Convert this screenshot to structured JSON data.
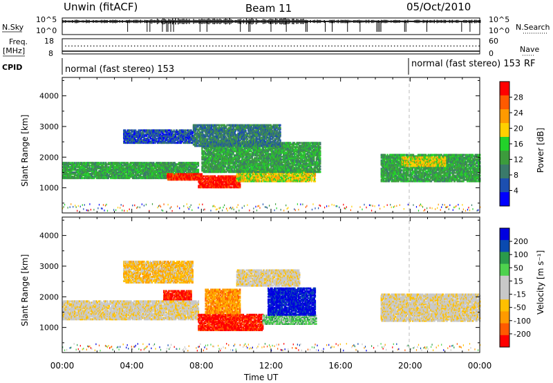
{
  "header": {
    "station": "Unwin (fitACF)",
    "beam": "Beam 11",
    "date": "05/Oct/2010"
  },
  "nsky_panel": {
    "left_label": "N.Sky",
    "right_label": "N.Search",
    "left_ticks": [
      "10^5",
      "10^0"
    ],
    "right_ticks": [
      "10^5",
      "10^0"
    ]
  },
  "freq_panel": {
    "left_label": "Freq.",
    "left_unit": "[MHz]",
    "right_label": "Nave",
    "left_ticks": [
      "18",
      "8"
    ],
    "right_ticks": [
      "60",
      "0"
    ]
  },
  "cpid_panel": {
    "label": "CPID",
    "segments": [
      {
        "text": "normal (fast stereo) 153",
        "start_hour": 0
      },
      {
        "text": "normal (fast stereo) 153",
        "start_hour": 19.9
      }
    ],
    "rf_label": "RF"
  },
  "x_axis": {
    "label": "Time UT",
    "ticks": [
      "00:00",
      "04:00",
      "08:00",
      "12:00",
      "16:00",
      "20:00",
      "00:00"
    ],
    "range_hours": [
      0,
      24
    ]
  },
  "chart_data": [
    {
      "type": "heatmap",
      "name": "power",
      "ylabel": "Slant Range [km]",
      "ylim": [
        180,
        4600
      ],
      "yticks": [
        1000,
        2000,
        3000,
        4000
      ],
      "colorbar": {
        "label": "Power [dB]",
        "ticks": [
          "28",
          "24",
          "20",
          "16",
          "12",
          "8",
          "4"
        ],
        "colors": [
          "#0000ff",
          "#1c4fb0",
          "#3a7a6a",
          "#3c9c3c",
          "#22d22a",
          "#ffd000",
          "#ff9a00",
          "#ff5a00",
          "#ff0000"
        ]
      },
      "echo_bands": [
        {
          "t0": 0.0,
          "t1": 7.8,
          "r0": 1350,
          "r1": 1850,
          "level": 3
        },
        {
          "t0": 6.0,
          "t1": 8.0,
          "r0": 1300,
          "r1": 1500,
          "level": 8
        },
        {
          "t0": 7.8,
          "t1": 10.2,
          "r0": 1050,
          "r1": 1450,
          "level": 8
        },
        {
          "t0": 10.0,
          "t1": 14.5,
          "r0": 1250,
          "r1": 1650,
          "level": 5
        },
        {
          "t0": 8.0,
          "t1": 14.8,
          "r0": 1550,
          "r1": 2500,
          "level": 3
        },
        {
          "t0": 3.5,
          "t1": 7.5,
          "r0": 2500,
          "r1": 2950,
          "level": 1
        },
        {
          "t0": 7.5,
          "t1": 12.5,
          "r0": 2400,
          "r1": 3100,
          "level": 2
        },
        {
          "t0": 18.3,
          "t1": 24.0,
          "r0": 1250,
          "r1": 2150,
          "level": 3
        },
        {
          "t0": 19.5,
          "t1": 22.0,
          "r0": 1750,
          "r1": 2050,
          "level": 5
        }
      ]
    },
    {
      "type": "heatmap",
      "name": "velocity",
      "ylabel": "Slant Range [km]",
      "ylim": [
        180,
        4600
      ],
      "yticks": [
        1000,
        2000,
        3000,
        4000
      ],
      "colorbar": {
        "label": "Velocity [m s⁻¹]",
        "ticks": [
          "200",
          "100",
          "50",
          "15",
          "-15",
          "-50",
          "-100",
          "-200"
        ],
        "colors": [
          "#ff0000",
          "#ff5a00",
          "#ff9a00",
          "#ffc000",
          "#c8c8c8",
          "#c8c8c8",
          "#4ed24e",
          "#2a9a4a",
          "#0a4ab0",
          "#0000e0"
        ]
      },
      "echo_bands": [
        {
          "t0": 0.0,
          "t1": 7.8,
          "r0": 1300,
          "r1": 1900,
          "level": 4
        },
        {
          "t0": 7.8,
          "t1": 11.5,
          "r0": 950,
          "r1": 1450,
          "level": 0
        },
        {
          "t0": 11.5,
          "t1": 14.6,
          "r0": 1150,
          "r1": 1450,
          "level": 6
        },
        {
          "t0": 11.8,
          "t1": 14.5,
          "r0": 1450,
          "r1": 2350,
          "level": 9
        },
        {
          "t0": 8.2,
          "t1": 10.2,
          "r0": 1500,
          "r1": 2300,
          "level": 2
        },
        {
          "t0": 5.8,
          "t1": 7.4,
          "r0": 1950,
          "r1": 2250,
          "level": 0
        },
        {
          "t0": 10.0,
          "t1": 13.6,
          "r0": 2400,
          "r1": 2900,
          "level": 4
        },
        {
          "t0": 3.5,
          "t1": 7.5,
          "r0": 2500,
          "r1": 3200,
          "level": 3
        },
        {
          "t0": 18.3,
          "t1": 24.0,
          "r0": 1250,
          "r1": 2150,
          "level": 4
        }
      ]
    }
  ]
}
